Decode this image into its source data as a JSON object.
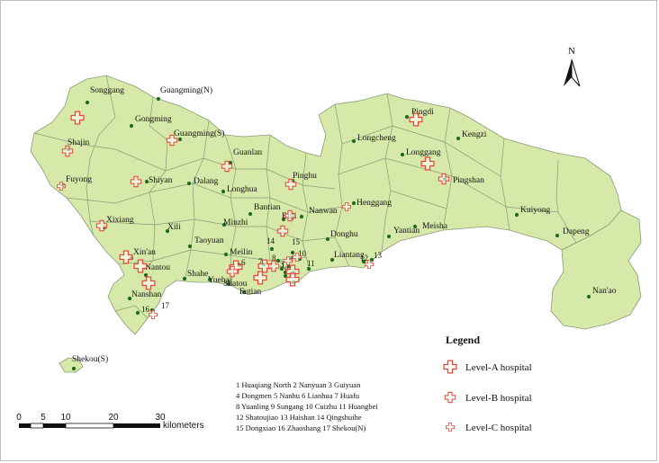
{
  "north_label": "N",
  "places": [
    "Songgang",
    "Guangming(N)",
    "Gongming",
    "Guangming(S)",
    "Shajin",
    "Fuyong",
    "Shiyan",
    "Dalang",
    "Guanlan",
    "Longhua",
    "Pinghu",
    "Bantian",
    "Buji",
    "Nanwan",
    "Henggang",
    "Longcheng",
    "Pingdi",
    "Kengzi",
    "Longgang",
    "Pingshan",
    "Kuiyong",
    "Dapeng",
    "Nan'ao",
    "Yantian",
    "Meisha",
    "Donghu",
    "Liantang",
    "Xixiang",
    "Xili",
    "Minzhi",
    "Taoyuan",
    "Meilin",
    "Xin'an",
    "Nantou",
    "Shahe",
    "Yuehai",
    "Shatou",
    "Futian",
    "Nanshan",
    "Shekou(S)"
  ],
  "numbered_places": [
    "1",
    "2",
    "3",
    "4",
    "5",
    "6",
    "7",
    "8",
    "9",
    "10",
    "11",
    "12",
    "13",
    "14",
    "15",
    "16",
    "17"
  ],
  "key_lines": [
    "1 Huaqiang North  2 Nanyuan 3 Guiyuan",
    "4 Dongmen  5 Nanhu  6 Lianhua  7 Huafu",
    "8 Yuanling  9 Sungang  10 Cuizhu  11 Huangbei",
    "12 Shatoujiao  13 Haishan  14 Qingshuihe",
    "15 Dongxiao  16 Zhaoshang  17 Shekou(N)"
  ],
  "legend": {
    "title": "Legend",
    "items": [
      "Level-A hospital",
      "Level-B hospital",
      "Level-C hospital"
    ]
  },
  "scale_bar": {
    "ticks": [
      "0",
      "5",
      "10",
      "20",
      "30"
    ],
    "unit": "kilometers"
  },
  "colors": {
    "land": "#d6e9a8",
    "boundary": "#8a9a78",
    "station_dot": "#1f6b1f",
    "hospital_symbol": "#e8483a"
  }
}
